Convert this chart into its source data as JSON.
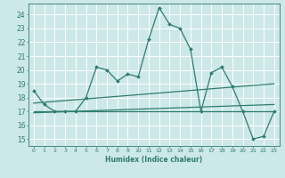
{
  "title": "",
  "xlabel": "Humidex (Indice chaleur)",
  "bg_color": "#cde8e8",
  "grid_color": "#ffffff",
  "line_color": "#2e7d6e",
  "xlim": [
    -0.5,
    23.5
  ],
  "ylim": [
    14.5,
    24.8
  ],
  "x_ticks": [
    0,
    1,
    2,
    3,
    4,
    5,
    6,
    7,
    8,
    9,
    10,
    11,
    12,
    13,
    14,
    15,
    16,
    17,
    18,
    19,
    20,
    21,
    22,
    23
  ],
  "y_ticks": [
    15,
    16,
    17,
    18,
    19,
    20,
    21,
    22,
    23,
    24
  ],
  "main_line_x": [
    0,
    1,
    2,
    3,
    4,
    5,
    6,
    7,
    8,
    9,
    10,
    11,
    12,
    13,
    14,
    15,
    16,
    17,
    18,
    19,
    20,
    21,
    22,
    23
  ],
  "main_line_y": [
    18.5,
    17.5,
    17.0,
    17.0,
    17.0,
    18.0,
    20.2,
    20.0,
    19.2,
    19.7,
    19.5,
    22.2,
    24.5,
    23.3,
    23.0,
    21.5,
    17.0,
    19.8,
    20.2,
    18.8,
    17.0,
    15.0,
    15.2,
    17.0
  ],
  "trend_line1_x": [
    0,
    23
  ],
  "trend_line1_y": [
    17.6,
    19.0
  ],
  "trend_line2_x": [
    0,
    23
  ],
  "trend_line2_y": [
    17.0,
    17.0
  ],
  "trend_line3_x": [
    0,
    23
  ],
  "trend_line3_y": [
    16.9,
    17.5
  ]
}
